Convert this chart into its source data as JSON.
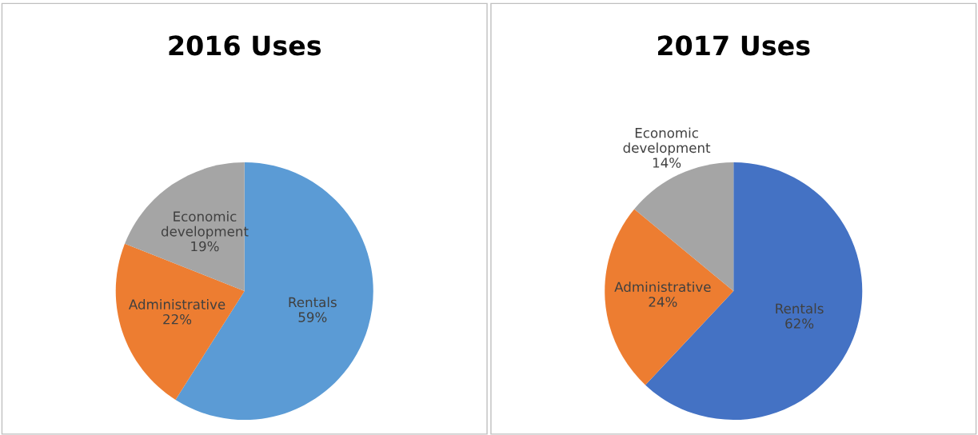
{
  "chart_data": [
    {
      "type": "pie",
      "title": "2016 Uses",
      "categories": [
        "Rentals",
        "Administrative",
        "Economic development"
      ],
      "values": [
        59,
        22,
        19
      ],
      "colors": [
        "#5b9bd5",
        "#ed7d31",
        "#a5a5a5"
      ],
      "value_labels": [
        "59%",
        "22%",
        "19%"
      ]
    },
    {
      "type": "pie",
      "title": "2017 Uses",
      "categories": [
        "Rentals",
        "Administrative",
        "Economic development"
      ],
      "values": [
        62,
        24,
        14
      ],
      "colors": [
        "#4472c4",
        "#ed7d31",
        "#a5a5a5"
      ],
      "value_labels": [
        "62%",
        "24%",
        "14%"
      ]
    }
  ]
}
